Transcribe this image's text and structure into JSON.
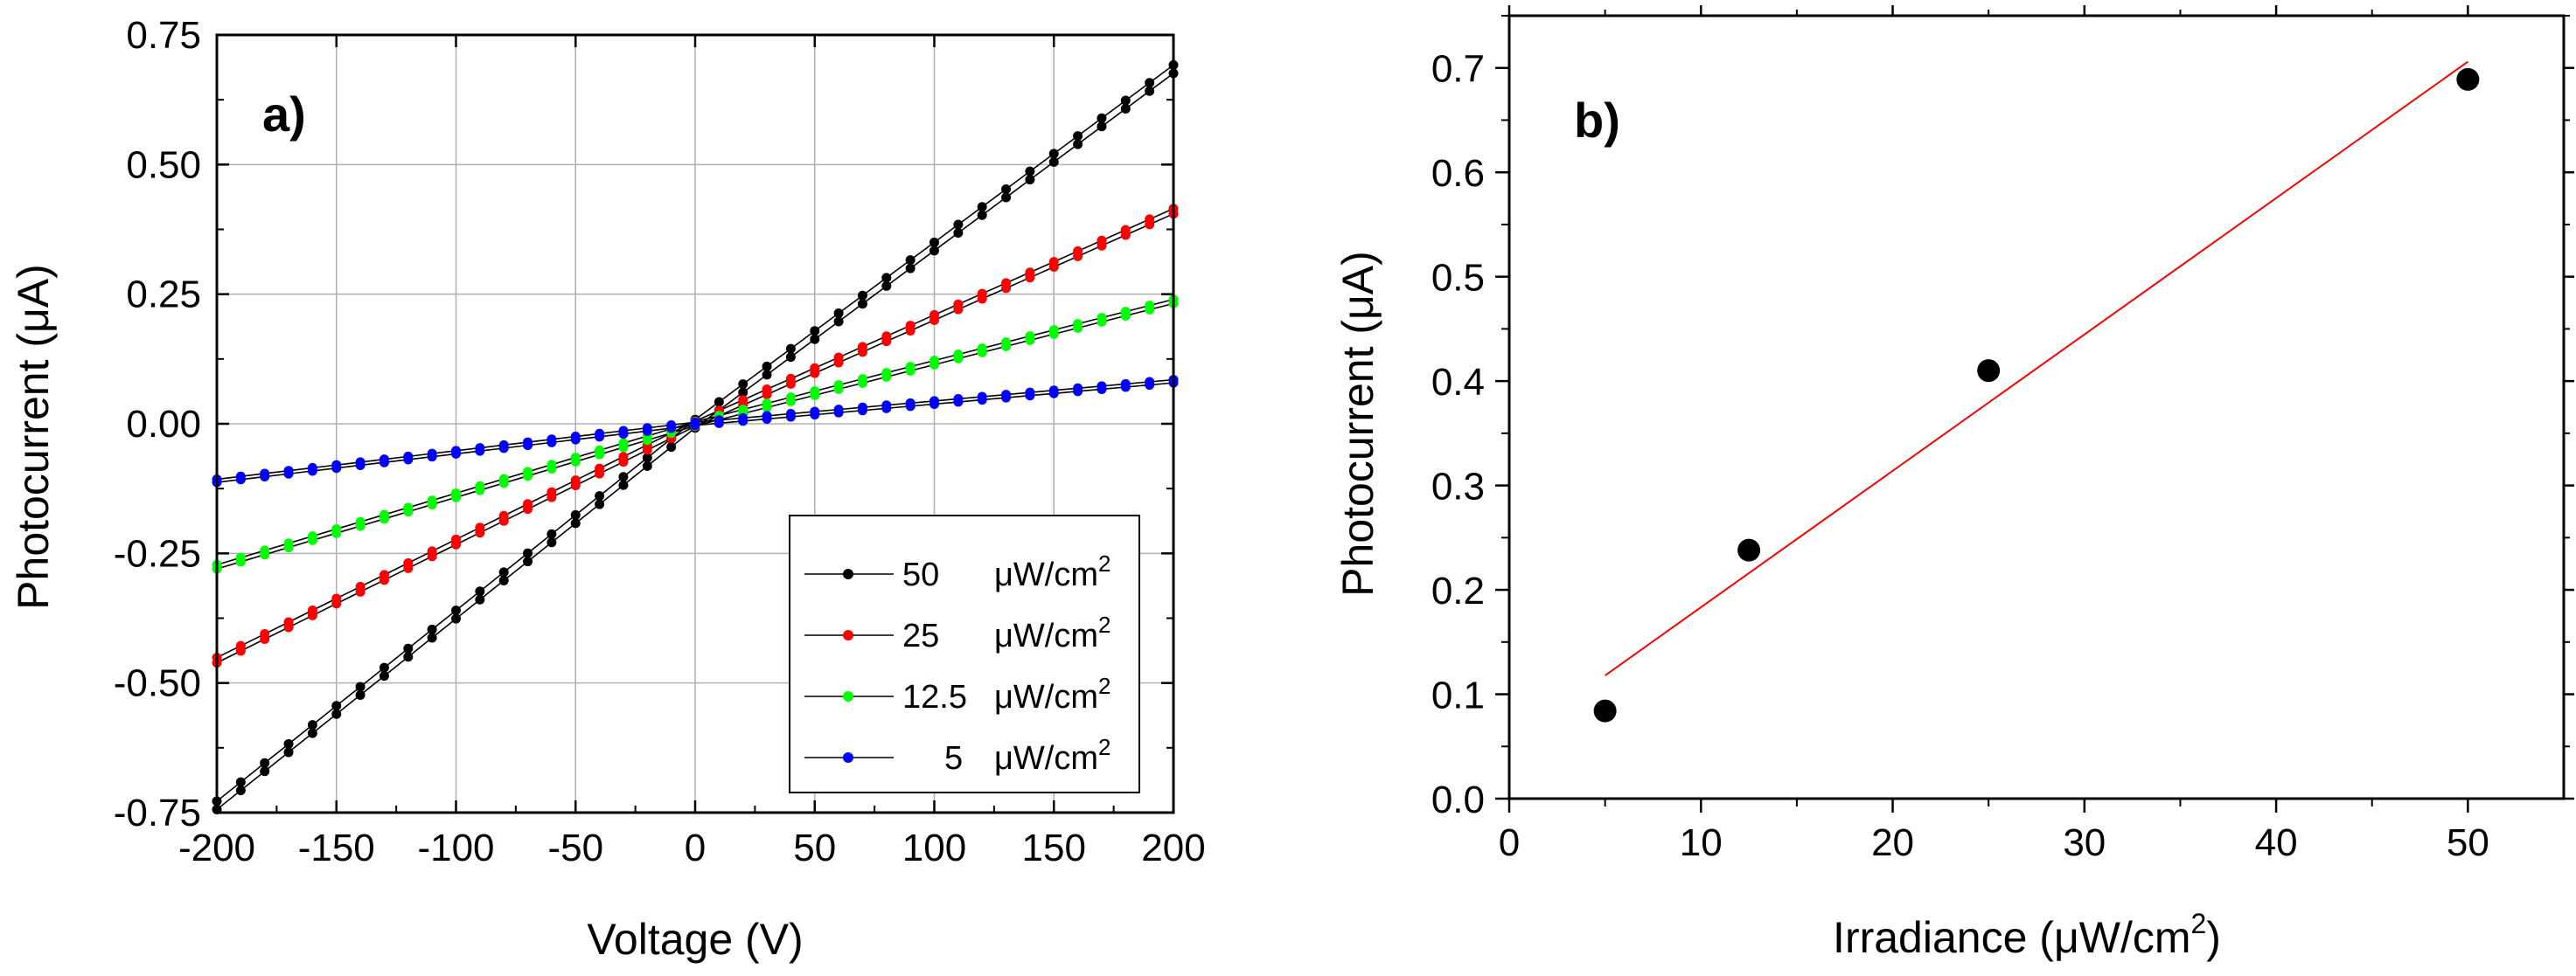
{
  "chart_data": [
    {
      "panel": "a)",
      "type": "line",
      "xlabel": "Voltage (V)",
      "ylabel_prefix": "Photocurrent (",
      "ylabel_mu": "μ",
      "ylabel_suffix": "A)",
      "xlim": [
        -200,
        200
      ],
      "ylim": [
        -0.75,
        0.75
      ],
      "grid": true,
      "legend_position": "bottom-right",
      "x_ticks": [
        -200,
        -150,
        -100,
        -50,
        0,
        50,
        100,
        150,
        200
      ],
      "x_tick_labels": [
        "-200",
        "-150",
        "-100",
        "-50",
        "0",
        "50",
        "100",
        "150",
        "200"
      ],
      "y_ticks": [
        -0.75,
        -0.5,
        -0.25,
        0,
        0.25,
        0.5,
        0.75
      ],
      "y_tick_labels": [
        "-0.75",
        "-0.50",
        "-0.25",
        "0.00",
        "0.25",
        "0.50",
        "0.75"
      ],
      "x_step": 10,
      "series": [
        {
          "name": "50",
          "value_label": "50",
          "unit": "μW/cm",
          "unit_sup": "2",
          "color": "#000000",
          "pos_slope": 0.00342,
          "neg_slope": 0.00368,
          "offset": 0.008
        },
        {
          "name": "25",
          "value_label": "25",
          "unit": "μW/cm",
          "unit_sup": "2",
          "color": "#ff0000",
          "pos_slope": 0.00205,
          "neg_slope": 0.00228,
          "offset": 0.005
        },
        {
          "name": "12.5",
          "value_label": "12.5",
          "unit": "μW/cm",
          "unit_sup": "2",
          "color": "#00ff00",
          "pos_slope": 0.00118,
          "neg_slope": 0.00138,
          "offset": 0.004
        },
        {
          "name": "5",
          "value_label": "5",
          "unit": "μW/cm",
          "unit_sup": "2",
          "color": "#0000ff",
          "pos_slope": 0.00041,
          "neg_slope": 0.00055,
          "offset": 0.003
        }
      ]
    },
    {
      "panel": "b)",
      "type": "scatter",
      "xlabel_prefix": "Irradiance (",
      "xlabel_mu": "μ",
      "xlabel_mid": "W/cm",
      "xlabel_sup": "2",
      "xlabel_suffix": ")",
      "ylabel_prefix": "Photocurrent (",
      "ylabel_mu": "μ",
      "ylabel_suffix": "A)",
      "xlim": [
        0,
        55
      ],
      "ylim": [
        0,
        0.75
      ],
      "grid": false,
      "x_ticks": [
        0,
        10,
        20,
        30,
        40,
        50
      ],
      "x_tick_labels": [
        "0",
        "10",
        "20",
        "30",
        "40",
        "50"
      ],
      "y_ticks": [
        0,
        0.1,
        0.2,
        0.3,
        0.4,
        0.5,
        0.6,
        0.7
      ],
      "y_tick_labels": [
        "0.0",
        "0.1",
        "0.2",
        "0.3",
        "0.4",
        "0.5",
        "0.6",
        "0.7"
      ],
      "points": [
        {
          "x": 5,
          "y": 0.084
        },
        {
          "x": 12.5,
          "y": 0.238
        },
        {
          "x": 25,
          "y": 0.41
        },
        {
          "x": 50,
          "y": 0.689
        }
      ],
      "fit": {
        "x": [
          5,
          50
        ],
        "y": [
          0.118,
          0.706
        ],
        "color": "#ff0000"
      }
    }
  ]
}
